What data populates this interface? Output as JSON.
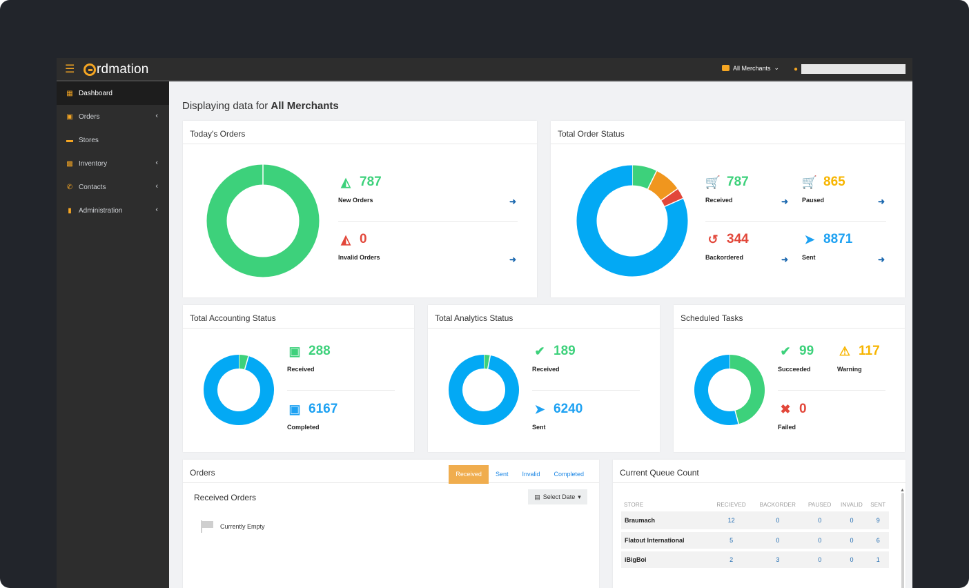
{
  "app": {
    "brand": "rdmation"
  },
  "topbar": {
    "merchant_selector": "All Merchants"
  },
  "sidebar": {
    "items": [
      {
        "label": "Dashboard",
        "active": true
      },
      {
        "label": "Orders"
      },
      {
        "label": "Stores"
      },
      {
        "label": "Inventory"
      },
      {
        "label": "Contacts"
      },
      {
        "label": "Administration"
      }
    ]
  },
  "page": {
    "title_prefix": "Displaying data for ",
    "title_bold": "All Merchants"
  },
  "todays_orders": {
    "title": "Today's Orders",
    "new_orders": {
      "value": "787",
      "label": "New Orders"
    },
    "invalid_orders": {
      "value": "0",
      "label": "Invalid Orders"
    }
  },
  "total_order_status": {
    "title": "Total Order Status",
    "received": {
      "value": "787",
      "label": "Received"
    },
    "paused": {
      "value": "865",
      "label": "Paused"
    },
    "backordered": {
      "value": "344",
      "label": "Backordered"
    },
    "sent": {
      "value": "8871",
      "label": "Sent"
    }
  },
  "accounting": {
    "title": "Total Accounting Status",
    "received": {
      "value": "288",
      "label": "Received"
    },
    "completed": {
      "value": "6167",
      "label": "Completed"
    }
  },
  "analytics": {
    "title": "Total Analytics Status",
    "received": {
      "value": "189",
      "label": "Received"
    },
    "sent": {
      "value": "6240",
      "label": "Sent"
    }
  },
  "scheduled": {
    "title": "Scheduled Tasks",
    "succeeded": {
      "value": "99",
      "label": "Succeeded"
    },
    "warning": {
      "value": "117",
      "label": "Warning"
    },
    "failed": {
      "value": "0",
      "label": "Failed"
    }
  },
  "orders_panel": {
    "title": "Orders",
    "tabs": [
      "Received",
      "Sent",
      "Invalid",
      "Completed"
    ],
    "active_tab": "Received",
    "subtitle": "Received Orders",
    "date_button": "Select Date",
    "empty": "Currently Empty"
  },
  "queue": {
    "title": "Current Queue Count",
    "columns": [
      "STORE",
      "RECIEVED",
      "BACKORDER",
      "PAUSED",
      "INVALID",
      "SENT"
    ],
    "rows": [
      {
        "store": "Braumach",
        "received": "12",
        "backorder": "0",
        "paused": "0",
        "invalid": "0",
        "sent": "9"
      },
      {
        "store": "Flatout International",
        "received": "5",
        "backorder": "0",
        "paused": "0",
        "invalid": "0",
        "sent": "6"
      },
      {
        "store": "iBigBoi",
        "received": "2",
        "backorder": "3",
        "paused": "0",
        "invalid": "0",
        "sent": "1"
      }
    ]
  },
  "colors": {
    "green": "#3dd17b",
    "blue": "#03a9f4",
    "orange": "#f0961e",
    "red": "#e2473a",
    "accent": "#f5a623"
  },
  "donuts": {
    "todays_orders": [
      {
        "name": "New Orders",
        "value": 787,
        "color": "#3dd17b"
      },
      {
        "name": "Invalid Orders",
        "value": 0,
        "color": "#e2473a"
      }
    ],
    "order_status": [
      {
        "name": "Received",
        "value": 787,
        "color": "#3dd17b"
      },
      {
        "name": "Paused",
        "value": 865,
        "color": "#f0961e"
      },
      {
        "name": "Backordered",
        "value": 344,
        "color": "#e2473a"
      },
      {
        "name": "Sent",
        "value": 8871,
        "color": "#03a9f4"
      }
    ],
    "accounting": [
      {
        "name": "Received",
        "value": 288,
        "color": "#3dd17b"
      },
      {
        "name": "Completed",
        "value": 6167,
        "color": "#03a9f4"
      }
    ],
    "analytics": [
      {
        "name": "Received",
        "value": 189,
        "color": "#3dd17b"
      },
      {
        "name": "Sent",
        "value": 6240,
        "color": "#03a9f4"
      }
    ],
    "scheduled": [
      {
        "name": "Succeeded",
        "value": 99,
        "color": "#3dd17b"
      },
      {
        "name": "Warning",
        "value": 117,
        "color": "#03a9f4"
      },
      {
        "name": "Failed",
        "value": 0,
        "color": "#e2473a"
      }
    ]
  }
}
